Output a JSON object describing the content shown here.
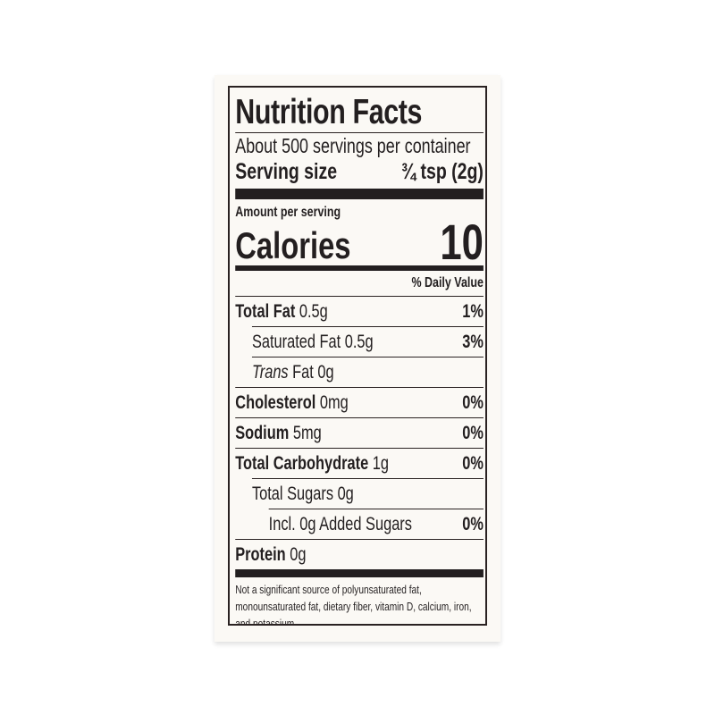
{
  "title": "Nutrition Facts",
  "servings": "About 500 servings per container",
  "serving_size": {
    "label": "Serving size",
    "value": "¾ tsp (2g)"
  },
  "amount_per_serving": "Amount per serving",
  "calories": {
    "label": "Calories",
    "value": "10"
  },
  "daily_value_header": "% Daily Value",
  "nutrients": [
    {
      "name": "Total Fat",
      "amount": "0.5g",
      "dv": "1%"
    },
    {
      "name": "Saturated Fat",
      "amount": "0.5g",
      "dv": "3%"
    },
    {
      "name": "Trans",
      "name2": "Fat",
      "amount": "0g",
      "dv": ""
    },
    {
      "name": "Cholesterol",
      "amount": "0mg",
      "dv": "0%"
    },
    {
      "name": "Sodium",
      "amount": "5mg",
      "dv": "0%"
    },
    {
      "name": "Total Carbohydrate",
      "amount": "1g",
      "dv": "0%"
    },
    {
      "name": "Total Sugars",
      "amount": "0g",
      "dv": ""
    },
    {
      "name": "Incl. 0g Added Sugars",
      "amount": "",
      "dv": "0%"
    },
    {
      "name": "Protein",
      "amount": "0g",
      "dv": ""
    }
  ],
  "footnote": "Not a significant source of polyunsaturated fat, monounsaturated fat, dietary fiber, vitamin D, calcium, iron, and potassium."
}
